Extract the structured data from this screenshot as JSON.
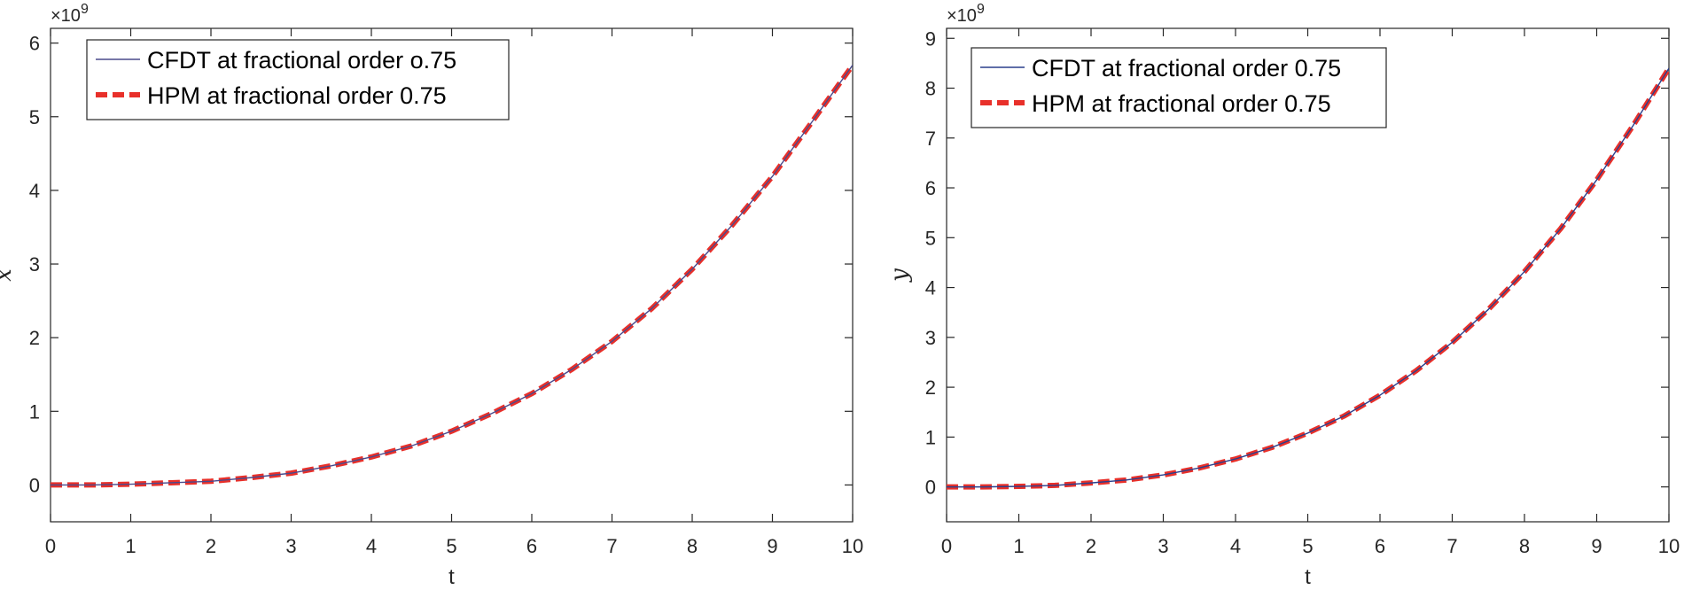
{
  "chart_data": [
    {
      "type": "line",
      "xlabel": "t",
      "ylabel": "x",
      "exponent_label": "×10",
      "exponent_power": "9",
      "xlim": [
        0,
        10
      ],
      "ylim": [
        -0.5,
        6.2
      ],
      "xticks": [
        0,
        1,
        2,
        3,
        4,
        5,
        6,
        7,
        8,
        9,
        10
      ],
      "yticks": [
        0,
        1,
        2,
        3,
        4,
        5,
        6
      ],
      "grid": false,
      "legend_position": "top-left",
      "x": [
        0,
        0.5,
        1,
        1.5,
        2,
        2.5,
        3,
        3.5,
        4,
        4.5,
        5,
        5.5,
        6,
        6.5,
        7,
        7.5,
        8,
        8.5,
        9,
        9.5,
        10
      ],
      "series": [
        {
          "name": "CFDT at  fractional order o.75",
          "style": "solid-thin",
          "color": "#4a4a8c",
          "values": [
            0,
            0.0,
            0.01,
            0.03,
            0.05,
            0.1,
            0.16,
            0.26,
            0.38,
            0.53,
            0.73,
            0.97,
            1.24,
            1.57,
            1.95,
            2.4,
            2.93,
            3.53,
            4.19,
            4.94,
            5.7
          ]
        },
        {
          "name": "HPM at fractional order 0.75",
          "style": "dashed-thick",
          "color": "#e8302a",
          "values": [
            0,
            0.0,
            0.01,
            0.03,
            0.05,
            0.1,
            0.16,
            0.26,
            0.38,
            0.53,
            0.73,
            0.97,
            1.24,
            1.57,
            1.95,
            2.4,
            2.93,
            3.53,
            4.19,
            4.94,
            5.7
          ]
        }
      ]
    },
    {
      "type": "line",
      "xlabel": "t",
      "ylabel": "y",
      "exponent_label": "×10",
      "exponent_power": "9",
      "xlim": [
        0,
        10
      ],
      "ylim": [
        -0.7,
        9.2
      ],
      "xticks": [
        0,
        1,
        2,
        3,
        4,
        5,
        6,
        7,
        8,
        9,
        10
      ],
      "yticks": [
        0,
        1,
        2,
        3,
        4,
        5,
        6,
        7,
        8,
        9
      ],
      "grid": false,
      "legend_position": "top-left",
      "x": [
        0,
        0.5,
        1,
        1.5,
        2,
        2.5,
        3,
        3.5,
        4,
        4.5,
        5,
        5.5,
        6,
        6.5,
        7,
        7.5,
        8,
        8.5,
        9,
        9.5,
        10
      ],
      "series": [
        {
          "name": "CFDT at fractional order 0.75",
          "style": "solid-thin",
          "color": "#2a3f8c",
          "values": [
            0,
            0.0,
            0.01,
            0.03,
            0.08,
            0.14,
            0.24,
            0.38,
            0.56,
            0.79,
            1.08,
            1.42,
            1.84,
            2.33,
            2.9,
            3.56,
            4.32,
            5.18,
            6.16,
            7.24,
            8.4
          ]
        },
        {
          "name": "HPM  at fractional order 0.75",
          "style": "dashed-thick",
          "color": "#e8302a",
          "values": [
            0,
            0.0,
            0.01,
            0.03,
            0.08,
            0.14,
            0.24,
            0.38,
            0.56,
            0.79,
            1.08,
            1.42,
            1.84,
            2.33,
            2.9,
            3.56,
            4.32,
            5.18,
            6.16,
            7.24,
            8.4
          ]
        }
      ]
    }
  ]
}
